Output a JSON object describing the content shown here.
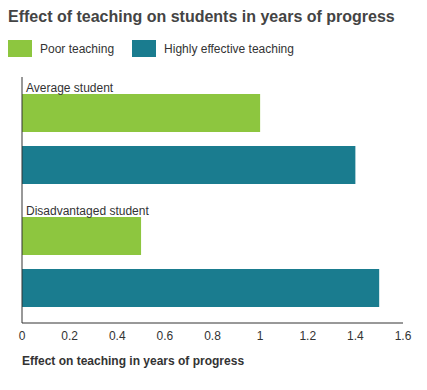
{
  "chart_data": {
    "type": "bar",
    "orientation": "horizontal",
    "title": "Effect of teaching on students in years of progress",
    "x_label": "Effect on teaching in years of progress",
    "categories": [
      "Average student",
      "Disadvantaged student"
    ],
    "series": [
      {
        "name": "Poor teaching",
        "color": "#8dc63f",
        "values": [
          1.0,
          0.5
        ]
      },
      {
        "name": "Highly effective teaching",
        "color": "#1a7c8f",
        "values": [
          1.4,
          1.5
        ]
      }
    ],
    "xlim": [
      0,
      1.6
    ],
    "xticks": [
      0,
      0.2,
      0.4,
      0.6,
      0.8,
      1,
      1.2,
      1.4,
      1.6
    ],
    "grid": false,
    "legend": "upper left"
  }
}
